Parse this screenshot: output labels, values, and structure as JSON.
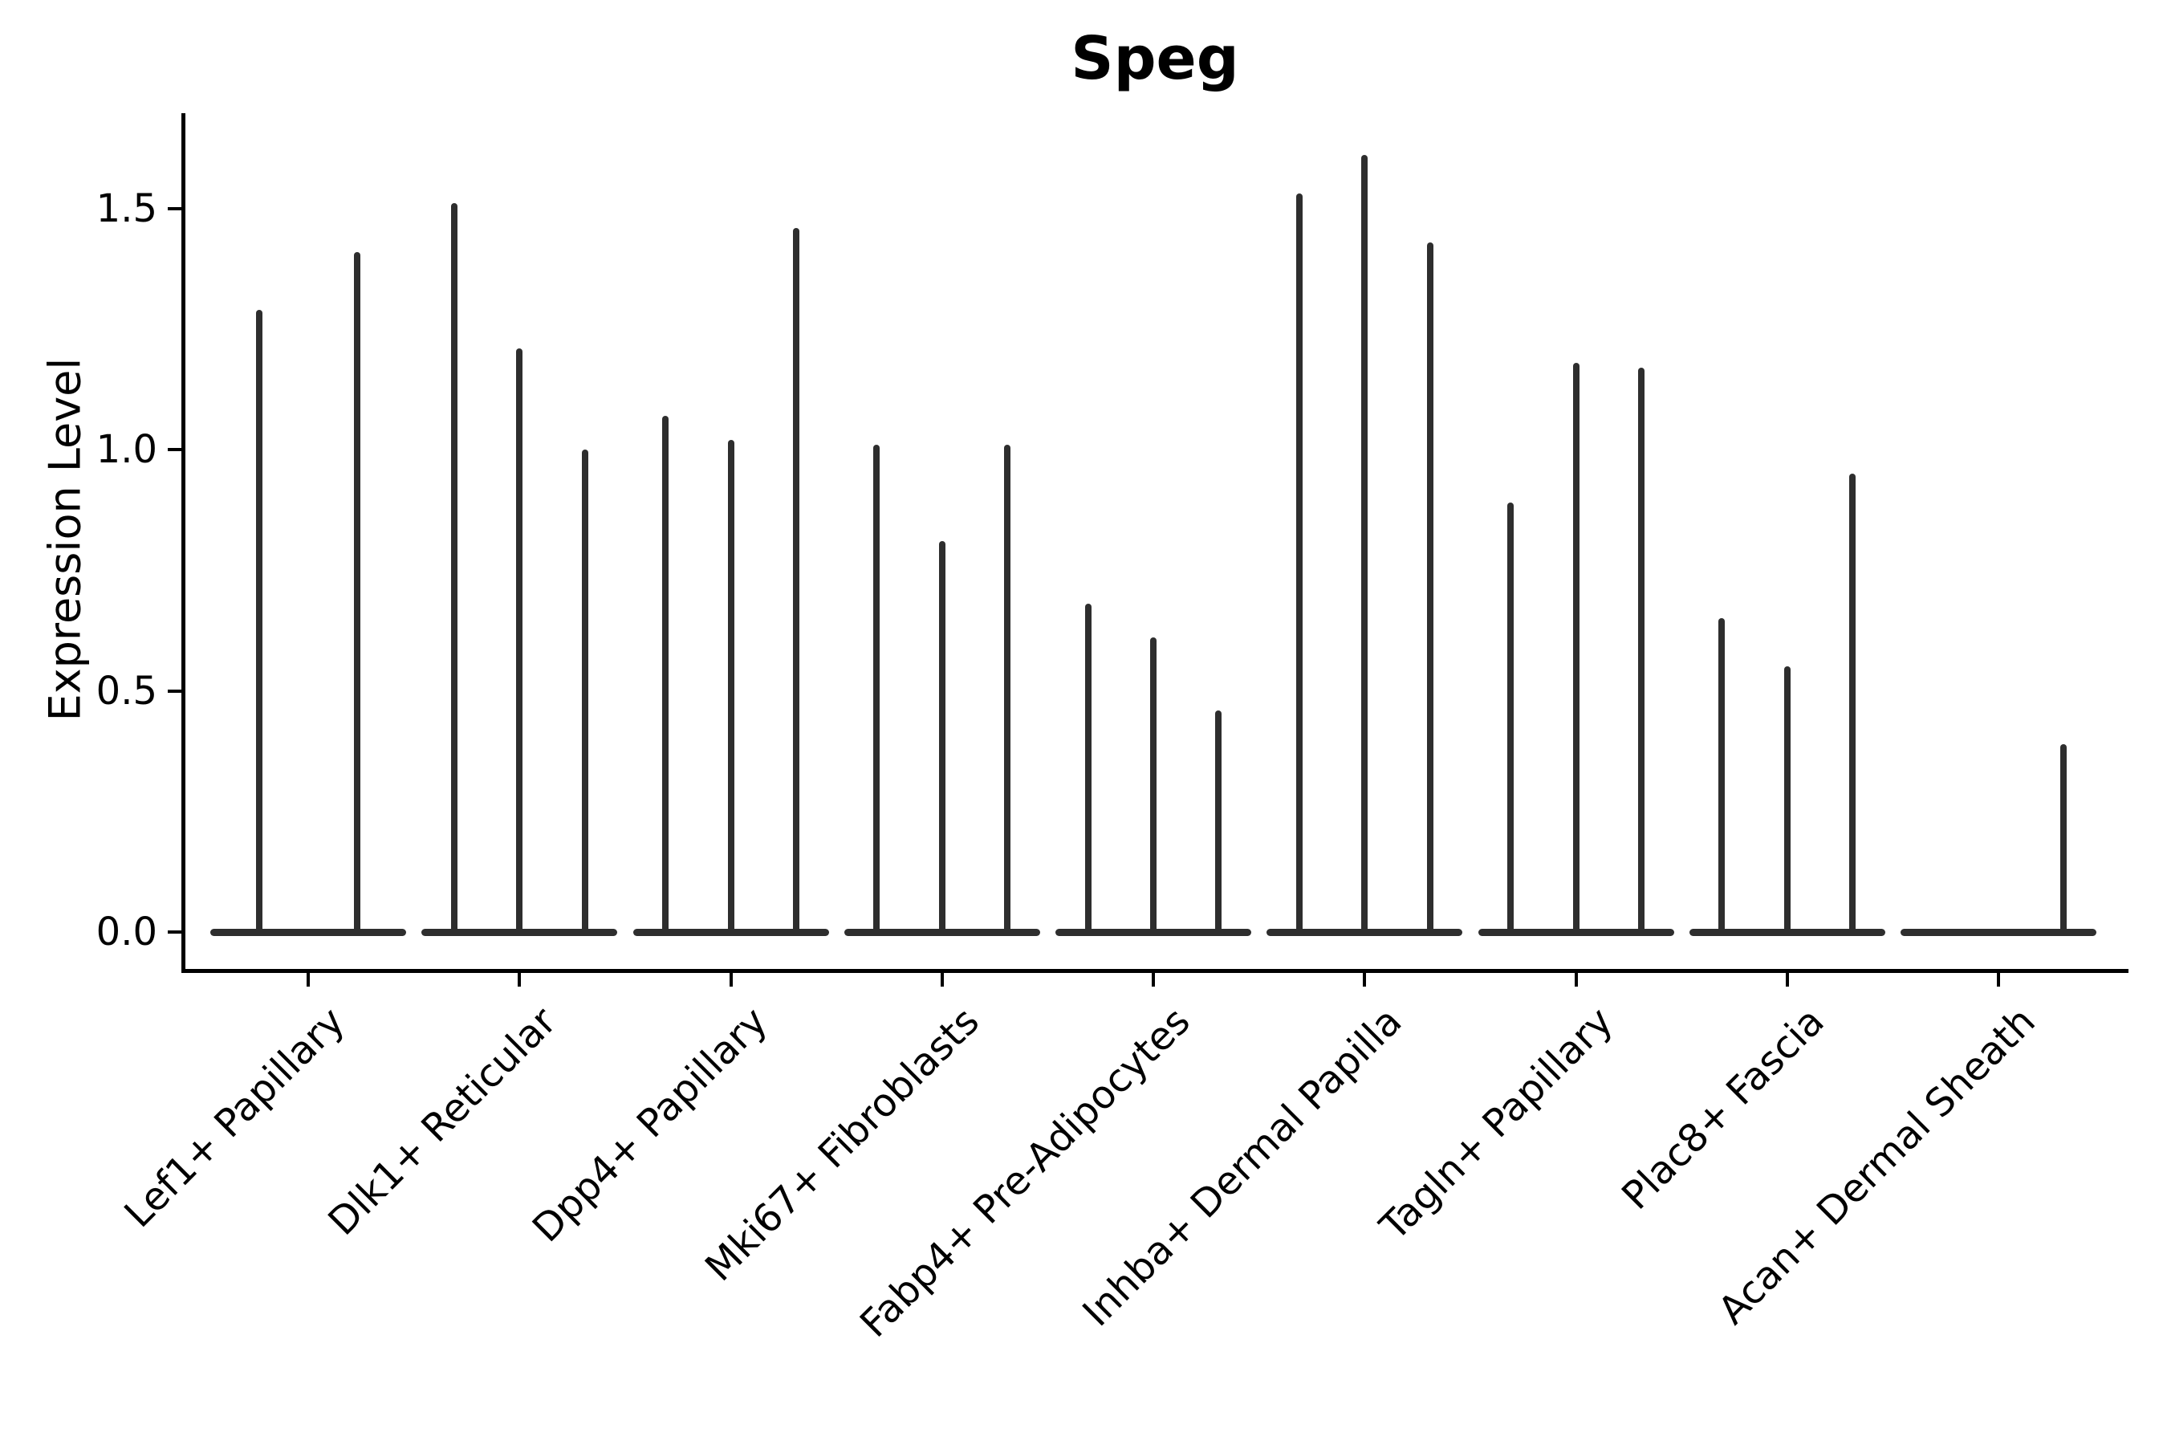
{
  "title": "Speg",
  "chart_data": {
    "type": "violin",
    "title": "Speg",
    "xlabel": "",
    "ylabel": "Expression Level",
    "yticks": [
      0.0,
      0.5,
      1.0,
      1.5
    ],
    "ytick_labels": [
      "0.0",
      "0.5",
      "1.0",
      "1.5"
    ],
    "ylim": [
      -0.08,
      1.69
    ],
    "grid": false,
    "legend": "none",
    "xtick_rotation_deg": 45,
    "violin_color": "#2e2e2e",
    "axis_color": "#000000",
    "categories": [
      "Lef1+ Papillary",
      "Dlk1+ Reticular",
      "Dpp4+ Papillary",
      "Mki67+ Fibroblasts",
      "Fabp4+ Pre-Adipocytes",
      "Inhba+ Dermal Papilla",
      "Tagln+ Papillary",
      "Plac8+ Fascia",
      "Acan+ Dermal Sheath"
    ],
    "groups": [
      {
        "category": "Lef1+ Papillary",
        "violin_maxima": [
          1.29,
          1.41
        ]
      },
      {
        "category": "Dlk1+ Reticular",
        "violin_maxima": [
          1.51,
          1.21,
          1.0
        ]
      },
      {
        "category": "Dpp4+ Papillary",
        "violin_maxima": [
          1.07,
          1.02,
          1.46
        ]
      },
      {
        "category": "Mki67+ Fibroblasts",
        "violin_maxima": [
          1.01,
          0.81,
          1.01
        ]
      },
      {
        "category": "Fabp4+ Pre-Adipocytes",
        "violin_maxima": [
          0.68,
          0.61,
          0.46
        ]
      },
      {
        "category": "Inhba+ Dermal Papilla",
        "violin_maxima": [
          1.53,
          1.61,
          1.43
        ]
      },
      {
        "category": "Tagln+ Papillary",
        "violin_maxima": [
          0.89,
          1.18,
          1.17
        ]
      },
      {
        "category": "Plac8+ Fascia",
        "violin_maxima": [
          0.65,
          0.55,
          0.95
        ]
      },
      {
        "category": "Acan+ Dermal Sheath",
        "violin_maxima": [
          0.0,
          0.0,
          0.39
        ]
      }
    ]
  }
}
